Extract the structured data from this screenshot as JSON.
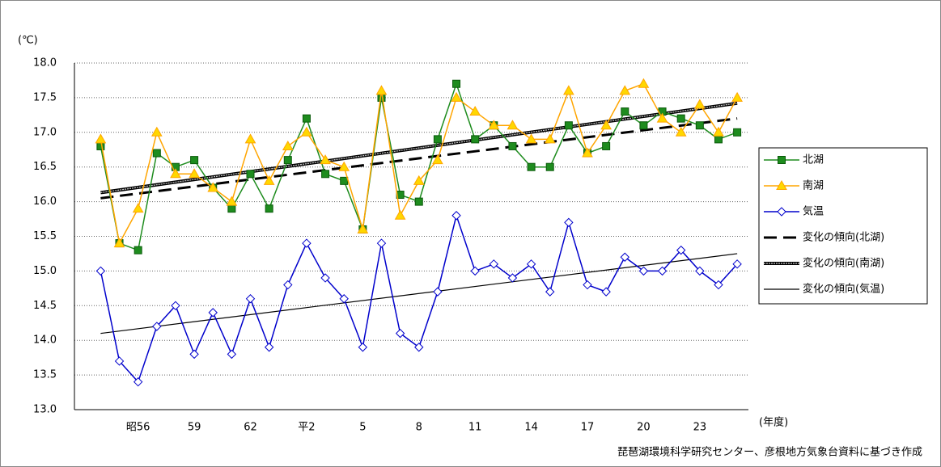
{
  "chart_data": {
    "type": "line",
    "y_unit": "(℃)",
    "x_unit": "(年度)",
    "source": "琵琶湖環境科学研究センター、彦根地方気象台資料に基づき作成",
    "categories": [
      null,
      null,
      "昭56",
      null,
      null,
      "59",
      null,
      null,
      "62",
      null,
      null,
      "平2",
      null,
      null,
      "5",
      null,
      null,
      "8",
      null,
      null,
      "11",
      null,
      null,
      "14",
      null,
      null,
      "17",
      null,
      null,
      "20",
      null,
      null,
      "23",
      null,
      null
    ],
    "ylim": [
      13,
      18
    ],
    "yticks": [
      {
        "value": 13,
        "label": "13.0"
      },
      13.5,
      {
        "value": 14,
        "label": "14.0"
      },
      14.5,
      {
        "value": 15,
        "label": "15.0"
      },
      15.5,
      {
        "value": 16,
        "label": "16.0"
      },
      16.5,
      {
        "value": 17,
        "label": "17.0"
      },
      17.5,
      {
        "value": 18,
        "label": "18.0"
      }
    ],
    "grid": true,
    "legend": "right",
    "series": [
      {
        "name": "北湖",
        "color": "#1e8c1e",
        "marker": "square",
        "values": [
          16.8,
          15.4,
          15.3,
          16.7,
          16.5,
          16.6,
          16.2,
          15.9,
          16.4,
          15.9,
          16.6,
          17.2,
          16.4,
          16.3,
          15.6,
          17.5,
          16.1,
          16.0,
          16.9,
          17.7,
          16.9,
          17.1,
          16.8,
          16.5,
          16.5,
          17.1,
          16.7,
          16.8,
          17.3,
          17.1,
          17.3,
          17.2,
          17.1,
          16.9,
          17.0
        ]
      },
      {
        "name": "南湖",
        "color": "#ffa500",
        "marker": "triangle",
        "values": [
          16.9,
          15.4,
          15.9,
          17.0,
          16.4,
          16.4,
          16.2,
          16.0,
          16.9,
          16.3,
          16.8,
          17.0,
          16.6,
          16.5,
          15.6,
          17.6,
          15.8,
          16.3,
          16.6,
          17.5,
          17.3,
          17.1,
          17.1,
          16.9,
          16.9,
          17.6,
          16.7,
          17.1,
          17.6,
          17.7,
          17.2,
          17.0,
          17.4,
          17.0,
          17.5
        ]
      },
      {
        "name": "気温",
        "color": "#0000cc",
        "marker": "diamond",
        "values": [
          15.0,
          13.7,
          13.4,
          14.2,
          14.5,
          13.8,
          14.4,
          13.8,
          14.6,
          13.9,
          14.8,
          15.4,
          14.9,
          14.6,
          13.9,
          15.4,
          14.1,
          13.9,
          14.7,
          15.8,
          15.0,
          15.1,
          14.9,
          15.1,
          14.7,
          15.7,
          14.8,
          14.7,
          15.2,
          15.0,
          15.0,
          15.3,
          15.0,
          14.8,
          15.1
        ]
      }
    ],
    "trends": [
      {
        "name": "変化の傾向(北湖)",
        "color": "#000000",
        "style": "dash",
        "values": [
          16.05,
          17.2
        ]
      },
      {
        "name": "変化の傾向(南湖)",
        "color": "#000000",
        "style": "double",
        "values": [
          16.13,
          17.42
        ]
      },
      {
        "name": "変化の傾向(気温)",
        "color": "#000000",
        "style": "thin",
        "values": [
          14.1,
          15.25
        ]
      }
    ]
  }
}
